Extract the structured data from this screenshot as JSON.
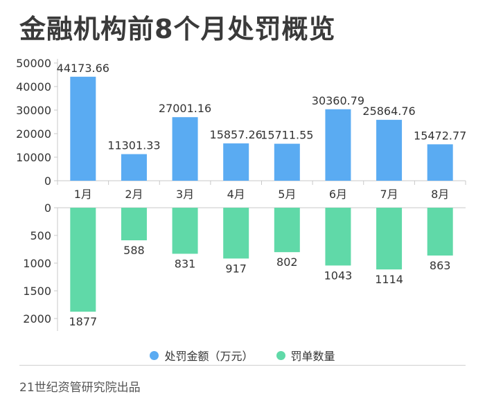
{
  "title": "金融机构前8个月处罚概览",
  "source": "21世纪资管研究院出品",
  "colors": {
    "amount": "#5aabf2",
    "count": "#60d9a8",
    "axis": "#c8c8c8",
    "text": "#333333"
  },
  "chart_data": {
    "type": "bar",
    "categories": [
      "1月",
      "2月",
      "3月",
      "4月",
      "5月",
      "6月",
      "7月",
      "8月"
    ],
    "series": [
      {
        "name": "处罚金额（万元）",
        "values": [
          44173.66,
          11301.33,
          27001.16,
          15857.26,
          15711.55,
          30360.79,
          25864.76,
          15472.77
        ],
        "value_labels": [
          "44173.66",
          "11301.33",
          "27001.16",
          "15857.26",
          "15711.55",
          "30360.79",
          "25864.76",
          "15472.77"
        ]
      },
      {
        "name": "罚单数量",
        "values": [
          1877,
          588,
          831,
          917,
          802,
          1043,
          1114,
          863
        ],
        "value_labels": [
          "1877",
          "588",
          "831",
          "917",
          "802",
          "1043",
          "1114",
          "863"
        ]
      }
    ],
    "top_axis": {
      "ylim": [
        0,
        50000
      ],
      "ticks": [
        "0",
        "10000",
        "20000",
        "30000",
        "40000",
        "50000"
      ],
      "tick_values": [
        0,
        10000,
        20000,
        30000,
        40000,
        50000
      ]
    },
    "bottom_axis": {
      "ylim": [
        0,
        2000
      ],
      "inverted": true,
      "ticks": [
        "0",
        "500",
        "1000",
        "1500",
        "2000"
      ],
      "tick_values": [
        0,
        500,
        1000,
        1500,
        2000
      ]
    },
    "legend_position": "bottom-center",
    "grid": false
  }
}
